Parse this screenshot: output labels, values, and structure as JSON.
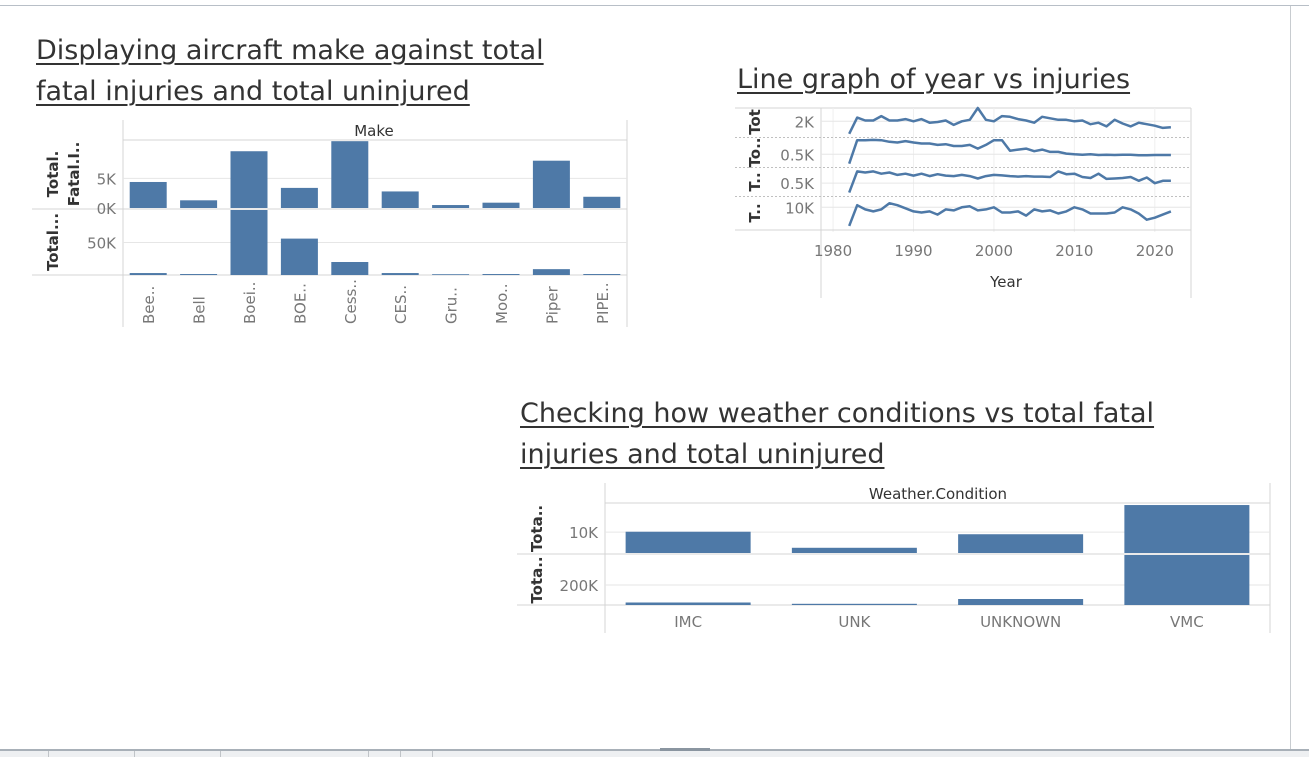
{
  "titles": {
    "make": "Displaying aircraft make against total fatal injuries and total uninjured",
    "line": "Line graph of year vs injuries",
    "weather": "Checking how weather conditions vs total fatal injuries and total uninjured"
  },
  "chart_data": [
    {
      "type": "bar",
      "title": "Displaying aircraft make against total fatal injuries and total uninjured",
      "header": "Make",
      "categories": [
        "Bee..",
        "Bell",
        "Boei..",
        "BOE..",
        "Cess..",
        "CES..",
        "Gru..",
        "Moo..",
        "Piper",
        "PIPE.."
      ],
      "series": [
        {
          "name": "Total.Fatal.I..",
          "axis_label_lines": [
            "Total.",
            "Fatal.I.."
          ],
          "ticks": [
            {
              "value": 0,
              "label": "0K"
            },
            {
              "value": 5000,
              "label": "5K"
            }
          ],
          "ylim": [
            0,
            11500
          ],
          "values": [
            4400,
            1300,
            9600,
            3400,
            11300,
            2800,
            500,
            900,
            8000,
            1900
          ]
        },
        {
          "name": "Total...",
          "axis_label_lines": [
            "Total..."
          ],
          "ticks": [
            {
              "value": 50000,
              "label": "50K"
            }
          ],
          "ylim": [
            0,
            100000
          ],
          "values": [
            3000,
            1500,
            100000,
            56000,
            20000,
            3000,
            1200,
            1500,
            9000,
            1500
          ]
        }
      ]
    },
    {
      "type": "line",
      "title": "Line graph of year vs injuries",
      "xlabel": "Year",
      "x_ticks": [
        1980,
        1990,
        2000,
        2010,
        2020
      ],
      "xlim": [
        1978.5,
        2024.5
      ],
      "x": [
        1982,
        1983,
        1984,
        1985,
        1986,
        1987,
        1988,
        1989,
        1990,
        1991,
        1992,
        1993,
        1994,
        1995,
        1996,
        1997,
        1998,
        1999,
        2000,
        2001,
        2002,
        2003,
        2004,
        2005,
        2006,
        2007,
        2008,
        2009,
        2010,
        2011,
        2012,
        2013,
        2014,
        2015,
        2016,
        2017,
        2018,
        2019,
        2020,
        2021,
        2022
      ],
      "series": [
        {
          "name": "Tot..",
          "axis_label": "Tot",
          "ticks": [
            {
              "value": 2000,
              "label": "2K"
            }
          ],
          "ylim": [
            0,
            3800
          ],
          "values": [
            300,
            2500,
            2100,
            2100,
            2700,
            2100,
            2100,
            2300,
            2000,
            2300,
            1800,
            1900,
            2100,
            1500,
            2000,
            2200,
            3800,
            2200,
            2000,
            2700,
            2600,
            2300,
            2100,
            1800,
            2600,
            2400,
            2200,
            2200,
            2000,
            2100,
            1600,
            1800,
            1300,
            2200,
            1700,
            1300,
            1800,
            1600,
            1400,
            1100,
            1200
          ]
        },
        {
          "name": "To..",
          "axis_label": "To..",
          "ticks": [
            {
              "value": 500,
              "label": "0.5K"
            }
          ],
          "ylim": [
            0,
            1150
          ],
          "values": [
            100,
            1100,
            1100,
            1110,
            1100,
            1030,
            1000,
            1060,
            1000,
            960,
            960,
            900,
            930,
            850,
            850,
            900,
            740,
            900,
            1100,
            1100,
            650,
            700,
            740,
            630,
            700,
            600,
            600,
            530,
            500,
            480,
            500,
            470,
            480,
            470,
            480,
            480,
            460,
            460,
            470,
            470,
            470
          ]
        },
        {
          "name": "T..",
          "axis_label": "T..",
          "ticks": [
            {
              "value": 500,
              "label": "0.5K"
            }
          ],
          "ylim": [
            0,
            1100
          ],
          "values": [
            100,
            1000,
            950,
            1000,
            900,
            950,
            850,
            900,
            820,
            900,
            800,
            880,
            820,
            800,
            850,
            800,
            700,
            800,
            850,
            830,
            800,
            780,
            800,
            780,
            780,
            760,
            1000,
            880,
            900,
            760,
            720,
            900,
            680,
            700,
            720,
            760,
            600,
            740,
            500,
            600,
            600
          ]
        },
        {
          "name": "T..",
          "axis_label": "T..",
          "ticks": [
            {
              "value": 10000,
              "label": "10K"
            }
          ],
          "ylim": [
            0,
            14500
          ],
          "values": [
            1000,
            11000,
            9000,
            8000,
            9000,
            12000,
            11000,
            9500,
            8000,
            7500,
            8000,
            6500,
            9000,
            8500,
            10000,
            10500,
            8500,
            9000,
            10000,
            7500,
            7500,
            8000,
            6000,
            9000,
            8000,
            8500,
            7000,
            8000,
            10000,
            9000,
            7000,
            7000,
            7000,
            7500,
            10000,
            9000,
            7000,
            4000,
            5000,
            6500,
            8000
          ]
        }
      ]
    },
    {
      "type": "bar",
      "title": "Checking how weather conditions vs total fatal injuries and total uninjured",
      "header": "Weather.Condition",
      "categories": [
        "IMC",
        "UNK",
        "UNKNOWN",
        "VMC"
      ],
      "series": [
        {
          "name": "Tota..",
          "axis_label": "Tota..",
          "ticks": [
            {
              "value": 10000,
              "label": "10K"
            }
          ],
          "ylim": [
            0,
            23500
          ],
          "values": [
            10200,
            2500,
            9000,
            23000
          ]
        },
        {
          "name": "Tota..",
          "axis_label": "Tota..",
          "ticks": [
            {
              "value": 200000,
              "label": "200K"
            }
          ],
          "ylim": [
            0,
            500000
          ],
          "values": [
            25000,
            12000,
            60000,
            500000
          ]
        }
      ]
    }
  ],
  "colors": {
    "bar": "#4e79a7",
    "grid": "#e6e6e6",
    "border": "#d4d4d4",
    "axis_text": "#777777"
  }
}
